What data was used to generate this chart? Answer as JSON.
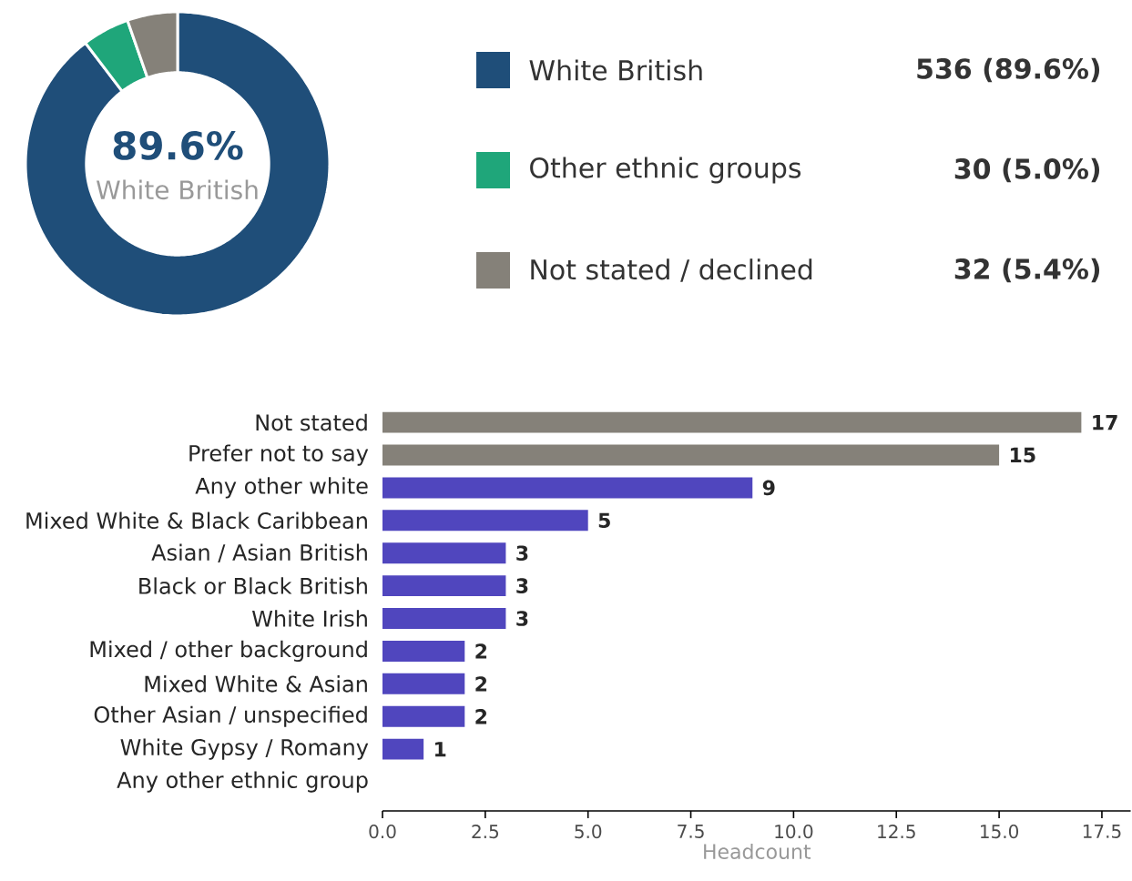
{
  "chart_data": [
    {
      "type": "donut",
      "categories": [
        "White British",
        "Other ethnic groups",
        "Not stated / declined"
      ],
      "values": [
        536,
        30,
        32
      ],
      "colors": [
        "#1f4e79",
        "#1fa67a",
        "#858179"
      ],
      "value_labels": [
        "536 (89.6%)",
        "30 (5.0%)",
        "32 (5.4%)"
      ],
      "annotations": [
        "89.6%",
        "White British"
      ],
      "legend": "right"
    },
    {
      "type": "bar",
      "orientation": "horizontal",
      "categories": [
        "Not stated",
        "Prefer not to say",
        "Any other white",
        "Mixed White & Black Caribbean",
        "Asian / Asian British",
        "Black or Black British",
        "White Irish",
        "Mixed / other background",
        "Mixed White & Asian",
        "Other Asian / unspecified",
        "White Gypsy / Romany",
        "Any other ethnic group"
      ],
      "values": [
        17,
        15,
        9,
        5,
        3,
        3,
        3,
        2,
        2,
        2,
        1,
        0
      ],
      "colors": [
        "#858179",
        "#858179",
        "#5046be",
        "#5046be",
        "#5046be",
        "#5046be",
        "#5046be",
        "#5046be",
        "#5046be",
        "#5046be",
        "#5046be",
        "#5046be"
      ],
      "value_labels": [
        "17",
        "15",
        "9",
        "5",
        "3",
        "3",
        "3",
        "2",
        "2",
        "2",
        "1",
        null
      ],
      "xlabel": "Headcount",
      "xlim": [
        0,
        18.2
      ],
      "xticks": [
        {
          "value": 0,
          "label": "0.0"
        },
        {
          "value": 2.5,
          "label": "2.5"
        },
        {
          "value": 5,
          "label": "5.0"
        },
        {
          "value": 7.5,
          "label": "7.5"
        },
        {
          "value": 10,
          "label": "10.0"
        },
        {
          "value": 12.5,
          "label": "12.5"
        },
        {
          "value": 15,
          "label": "15.0"
        },
        {
          "value": 17.5,
          "label": "17.5"
        }
      ],
      "grid": false
    }
  ]
}
